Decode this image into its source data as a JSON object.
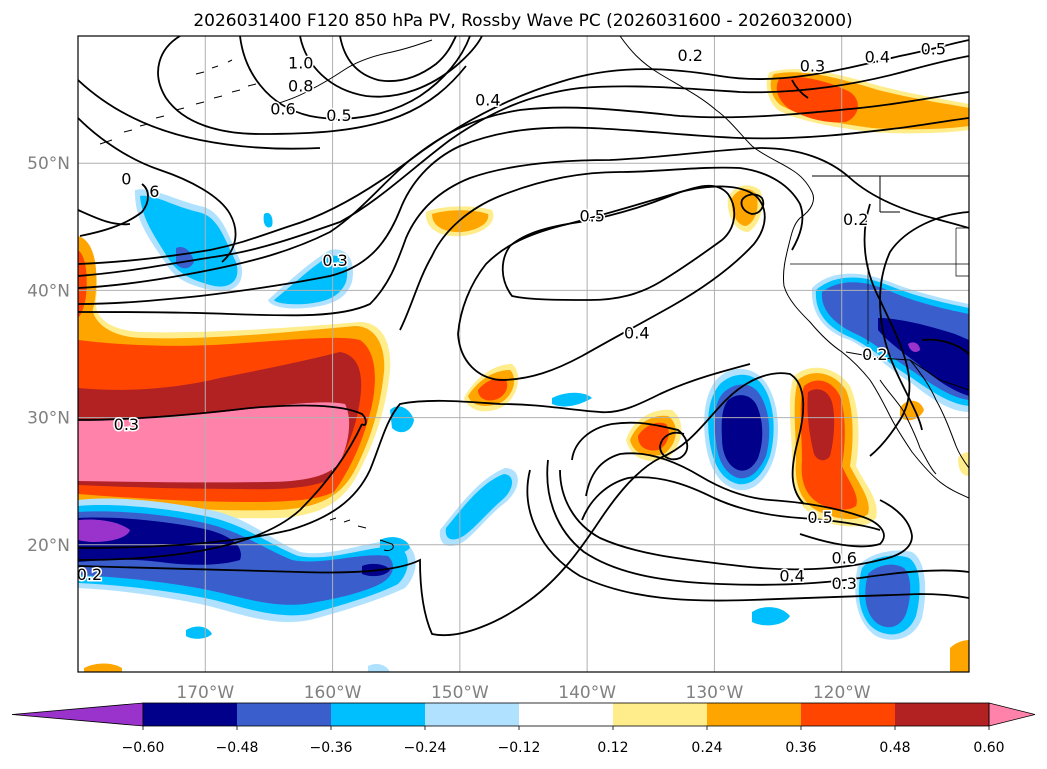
{
  "title": "2026031400 F120 850 hPa PV, Rossby Wave PC (2026031600 - 2026032000)",
  "map": {
    "lon_range": [
      -180,
      -110
    ],
    "lat_range": [
      10,
      60
    ],
    "lon_ticks": [
      {
        "value": -170,
        "label": "170°W"
      },
      {
        "value": -160,
        "label": "160°W"
      },
      {
        "value": -150,
        "label": "150°W"
      },
      {
        "value": -140,
        "label": "140°W"
      },
      {
        "value": -130,
        "label": "130°W"
      },
      {
        "value": -120,
        "label": "120°W"
      }
    ],
    "lat_ticks": [
      {
        "value": 50,
        "label": "50°N"
      },
      {
        "value": 40,
        "label": "40°N"
      },
      {
        "value": 30,
        "label": "30°N"
      },
      {
        "value": 20,
        "label": "20°N"
      }
    ],
    "grid": true
  },
  "contour_labels": [
    {
      "text": "1.0",
      "lon": -162.5,
      "lat": 57.9
    },
    {
      "text": "0.8",
      "lon": -162.5,
      "lat": 56.1
    },
    {
      "text": "0.6",
      "lon": -163.9,
      "lat": 54.3
    },
    {
      "text": "0.5",
      "lon": -159.5,
      "lat": 53.8
    },
    {
      "text": "0.4",
      "lon": -147.8,
      "lat": 55.0
    },
    {
      "text": "0.2",
      "lon": -131.9,
      "lat": 58.5
    },
    {
      "text": "0.3",
      "lon": -122.3,
      "lat": 57.7
    },
    {
      "text": "0.4",
      "lon": -117.2,
      "lat": 58.4
    },
    {
      "text": "0.5",
      "lon": -112.8,
      "lat": 59.0
    },
    {
      "text": "0.5",
      "lon": -139.6,
      "lat": 45.9
    },
    {
      "text": "0.2",
      "lon": -118.9,
      "lat": 45.6
    },
    {
      "text": "0.3",
      "lon": -159.8,
      "lat": 42.4
    },
    {
      "text": "0.4",
      "lon": -136.1,
      "lat": 36.7
    },
    {
      "text": "0.2",
      "lon": -117.4,
      "lat": 35.0
    },
    {
      "text": "0.3",
      "lon": -176.2,
      "lat": 29.5
    },
    {
      "text": "0.5",
      "lon": -121.7,
      "lat": 22.2
    },
    {
      "text": "0.6",
      "lon": -119.8,
      "lat": 19.0
    },
    {
      "text": "0.4",
      "lon": -123.9,
      "lat": 17.6
    },
    {
      "text": "0.3",
      "lon": -119.8,
      "lat": 17.0
    },
    {
      "text": "0.2",
      "lon": -179.1,
      "lat": 17.7
    },
    {
      "text": "0",
      "lon": -176.2,
      "lat": 48.8
    },
    {
      "text": "6",
      "lon": -174.0,
      "lat": 47.8
    }
  ],
  "colorbar": {
    "levels": [
      -0.6,
      -0.48,
      -0.36,
      -0.24,
      -0.12,
      0.12,
      0.24,
      0.36,
      0.48,
      0.6
    ],
    "tick_labels": [
      "−0.60",
      "−0.48",
      "−0.36",
      "−0.24",
      "−0.12",
      "0.12",
      "0.24",
      "0.36",
      "0.48",
      "0.60"
    ],
    "colors": [
      "#9a33cc",
      "#00008b",
      "#3a5fcd",
      "#00bfff",
      "#b0e2ff",
      "#ffffff",
      "#ffec8b",
      "#ffa500",
      "#ff4500",
      "#b22222",
      "#ff82ab"
    ]
  },
  "shaded_anomalies": [
    {
      "lon": -168.0,
      "lat": 43.8,
      "value": -0.36
    },
    {
      "lon": -167.5,
      "lat": 42.0,
      "value": -0.48
    },
    {
      "lon": -159.3,
      "lat": 40.5,
      "value": -0.36
    },
    {
      "lon": -172.0,
      "lat": 33.5,
      "value": 0.48
    },
    {
      "lon": -172.0,
      "lat": 29.5,
      "value": 0.6
    },
    {
      "lon": -176.0,
      "lat": 20.3,
      "value": -0.48
    },
    {
      "lon": -165.0,
      "lat": 18.5,
      "value": -0.36
    },
    {
      "lon": -128.8,
      "lat": 29.0,
      "value": -0.6
    },
    {
      "lon": -121.8,
      "lat": 26.5,
      "value": 0.48
    },
    {
      "lon": -116.0,
      "lat": 37.2,
      "value": -0.6
    },
    {
      "lon": -117.0,
      "lat": 15.3,
      "value": -0.36
    },
    {
      "lon": -122.0,
      "lat": 55.5,
      "value": 0.36
    },
    {
      "lon": -134.2,
      "lat": 29.0,
      "value": 0.36
    },
    {
      "lon": -146.8,
      "lat": 32.2,
      "value": 0.36
    },
    {
      "lon": -146.2,
      "lat": 22.0,
      "value": -0.24
    },
    {
      "lon": -150.0,
      "lat": 45.6,
      "value": 0.24
    },
    {
      "lon": -127.4,
      "lat": 45.4,
      "value": 0.36
    }
  ]
}
